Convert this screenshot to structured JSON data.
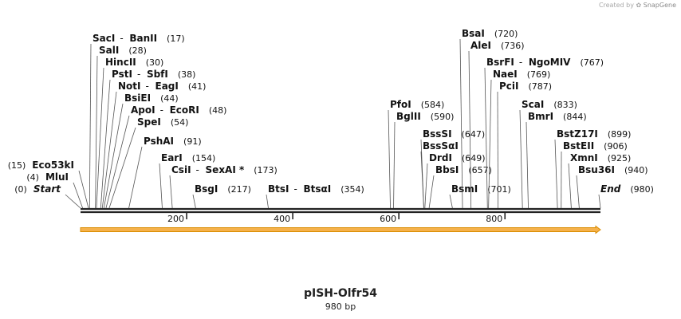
{
  "credit": {
    "prefix": "Created by",
    "brand": "SnapGene"
  },
  "plasmid": {
    "name": "pISH-Olfr54",
    "length_label": "980 bp",
    "length": 980
  },
  "colors": {
    "backbone": "#222222",
    "feature_fill": "#f5b14b",
    "feature_stroke": "#d98c00",
    "leader": "#555555",
    "text": "#111111"
  },
  "ticks": [
    {
      "pos": 200,
      "label": "200"
    },
    {
      "pos": 400,
      "label": "400"
    },
    {
      "pos": 600,
      "label": "600"
    },
    {
      "pos": 800,
      "label": "800"
    }
  ],
  "features": [
    {
      "name": "orf-arrow",
      "start": 1,
      "end": 980,
      "direction": "forward"
    }
  ],
  "sites": [
    {
      "parts": [
        "SacI",
        "BanII"
      ],
      "pos": 17,
      "pos_label": "(17)",
      "side": "right"
    },
    {
      "parts": [
        "SalI"
      ],
      "pos": 28,
      "pos_label": "(28)",
      "side": "right"
    },
    {
      "parts": [
        "HincII"
      ],
      "pos": 30,
      "pos_label": "(30)",
      "side": "right"
    },
    {
      "parts": [
        "PstI",
        "SbfI"
      ],
      "pos": 38,
      "pos_label": "(38)",
      "side": "right"
    },
    {
      "parts": [
        "NotI",
        "EagI"
      ],
      "pos": 41,
      "pos_label": "(41)",
      "side": "right"
    },
    {
      "parts": [
        "BsiEI"
      ],
      "pos": 44,
      "pos_label": "(44)",
      "side": "right"
    },
    {
      "parts": [
        "ApoI",
        "EcoRI"
      ],
      "pos": 48,
      "pos_label": "(48)",
      "side": "right"
    },
    {
      "parts": [
        "SpeI"
      ],
      "pos": 54,
      "pos_label": "(54)",
      "side": "right"
    },
    {
      "parts": [
        "PshAI"
      ],
      "pos": 91,
      "pos_label": "(91)",
      "side": "right"
    },
    {
      "parts": [
        "EarI"
      ],
      "pos": 154,
      "pos_label": "(154)",
      "side": "right"
    },
    {
      "parts": [
        "CsiI",
        "SexAI *"
      ],
      "pos": 173,
      "pos_label": "(173)",
      "side": "right"
    },
    {
      "parts": [
        "BsgI"
      ],
      "pos": 217,
      "pos_label": "(217)",
      "side": "right"
    },
    {
      "parts": [
        "BtsI",
        "BtsαI"
      ],
      "pos": 354,
      "pos_label": "(354)",
      "side": "right"
    },
    {
      "parts": [
        "Eco53kI"
      ],
      "pos": 15,
      "pos_label": "(15)",
      "side": "left"
    },
    {
      "parts": [
        "MluI"
      ],
      "pos": 4,
      "pos_label": "(4)",
      "side": "left"
    },
    {
      "parts": [
        "Start"
      ],
      "pos": 0,
      "pos_label": "(0)",
      "side": "left",
      "italic": true
    },
    {
      "parts": [
        "PfoI"
      ],
      "pos": 584,
      "pos_label": "(584)",
      "side": "right"
    },
    {
      "parts": [
        "BglII"
      ],
      "pos": 590,
      "pos_label": "(590)",
      "side": "right"
    },
    {
      "parts": [
        "BssSI"
      ],
      "pos": 647,
      "pos_label": "(647)",
      "side": "right"
    },
    {
      "parts": [
        "BssSαI"
      ],
      "pos": 647,
      "pos_label": "",
      "side": "right"
    },
    {
      "parts": [
        "DrdI"
      ],
      "pos": 649,
      "pos_label": "(649)",
      "side": "right"
    },
    {
      "parts": [
        "BbsI"
      ],
      "pos": 657,
      "pos_label": "(657)",
      "side": "right"
    },
    {
      "parts": [
        "BsmI"
      ],
      "pos": 701,
      "pos_label": "(701)",
      "side": "right"
    },
    {
      "parts": [
        "BsaI"
      ],
      "pos": 720,
      "pos_label": "(720)",
      "side": "right"
    },
    {
      "parts": [
        "AleI"
      ],
      "pos": 736,
      "pos_label": "(736)",
      "side": "right"
    },
    {
      "parts": [
        "BsrFI",
        "NgoMIV"
      ],
      "pos": 767,
      "pos_label": "(767)",
      "side": "right"
    },
    {
      "parts": [
        "NaeI"
      ],
      "pos": 769,
      "pos_label": "(769)",
      "side": "right"
    },
    {
      "parts": [
        "PciI"
      ],
      "pos": 787,
      "pos_label": "(787)",
      "side": "right"
    },
    {
      "parts": [
        "ScaI"
      ],
      "pos": 833,
      "pos_label": "(833)",
      "side": "right"
    },
    {
      "parts": [
        "BmrI"
      ],
      "pos": 844,
      "pos_label": "(844)",
      "side": "right"
    },
    {
      "parts": [
        "BstZ17I"
      ],
      "pos": 899,
      "pos_label": "(899)",
      "side": "right"
    },
    {
      "parts": [
        "BstEII"
      ],
      "pos": 906,
      "pos_label": "(906)",
      "side": "right"
    },
    {
      "parts": [
        "XmnI"
      ],
      "pos": 925,
      "pos_label": "(925)",
      "side": "right"
    },
    {
      "parts": [
        "Bsu36I"
      ],
      "pos": 940,
      "pos_label": "(940)",
      "side": "right"
    },
    {
      "parts": [
        "End"
      ],
      "pos": 980,
      "pos_label": "(980)",
      "side": "right",
      "italic": true
    }
  ]
}
